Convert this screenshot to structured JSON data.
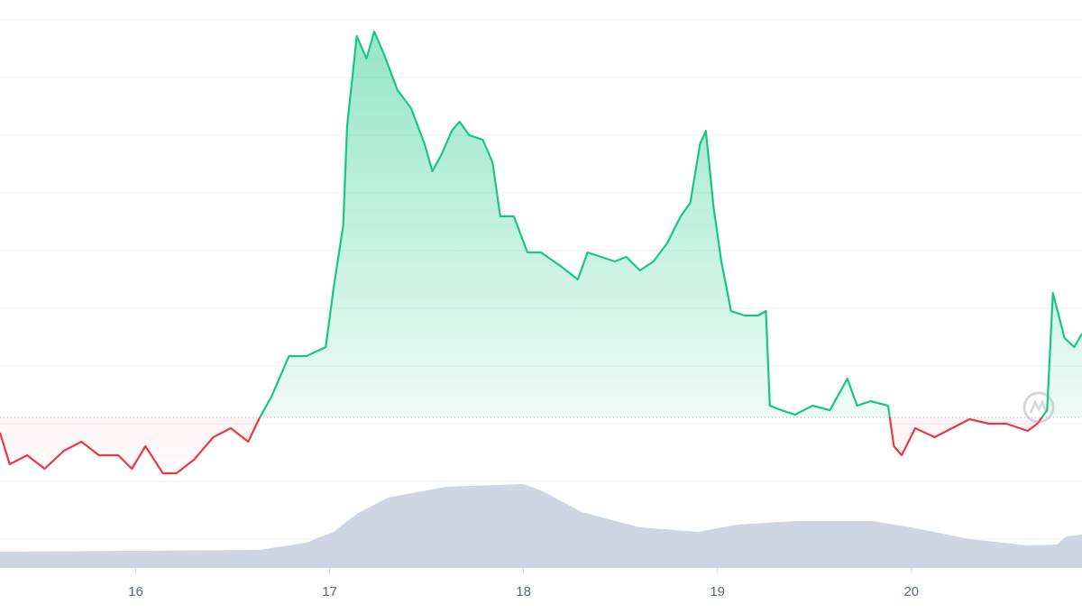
{
  "chart_data": {
    "type": "line",
    "xlim": [
      15.3,
      20.88
    ],
    "xticks": [
      16,
      17,
      18,
      19,
      20
    ],
    "ylim": [
      -32,
      598
    ],
    "yticks": [
      0,
      64,
      128,
      192,
      256,
      320,
      384,
      448,
      512,
      576
    ],
    "y2lim": [
      0,
      630
    ],
    "grid": true,
    "baseline": 135,
    "up_color": "#16c784",
    "down_color": "#ea3943",
    "price": {
      "x": [
        15.3,
        15.35,
        15.44,
        15.53,
        15.63,
        15.72,
        15.81,
        15.91,
        15.98,
        16.05,
        16.14,
        16.21,
        16.3,
        16.4,
        16.49,
        16.58,
        16.64,
        16.7,
        16.79,
        16.88,
        16.98,
        17.02,
        17.07,
        17.09,
        17.14,
        17.19,
        17.23,
        17.28,
        17.35,
        17.42,
        17.49,
        17.53,
        17.58,
        17.63,
        17.67,
        17.72,
        17.79,
        17.84,
        17.88,
        17.95,
        18.02,
        18.09,
        18.19,
        18.28,
        18.33,
        18.4,
        18.47,
        18.53,
        18.6,
        18.67,
        18.74,
        18.81,
        18.86,
        18.91,
        18.94,
        18.98,
        19.02,
        19.07,
        19.14,
        19.21,
        19.25,
        19.27,
        19.33,
        19.4,
        19.49,
        19.58,
        19.67,
        19.72,
        19.79,
        19.88,
        19.91,
        19.95,
        20.02,
        20.12,
        20.21,
        20.3,
        20.4,
        20.49,
        20.6,
        20.65,
        20.7,
        20.73,
        20.79,
        20.84,
        20.88
      ],
      "values": [
        118,
        83,
        93,
        78,
        98,
        108,
        93,
        93,
        78,
        103,
        73,
        73,
        88,
        113,
        123,
        108,
        135,
        158,
        203,
        203,
        213,
        278,
        348,
        458,
        558,
        533,
        563,
        538,
        498,
        478,
        438,
        408,
        428,
        453,
        463,
        448,
        443,
        418,
        358,
        358,
        318,
        318,
        303,
        288,
        318,
        313,
        308,
        313,
        298,
        308,
        328,
        358,
        373,
        438,
        453,
        368,
        308,
        253,
        248,
        248,
        253,
        148,
        143,
        138,
        148,
        143,
        178,
        148,
        153,
        148,
        103,
        93,
        123,
        113,
        123,
        133,
        128,
        128,
        120,
        128,
        143,
        273,
        223,
        213,
        228
      ]
    },
    "volume": {
      "axis": "y2",
      "color": "#cfd5e2",
      "x": [
        15.3,
        16.64,
        16.88,
        17.02,
        17.14,
        17.3,
        17.6,
        18.0,
        18.1,
        18.3,
        18.6,
        18.9,
        19.1,
        19.4,
        19.8,
        20.0,
        20.3,
        20.6,
        20.75,
        20.8,
        20.88
      ],
      "values": [
        18,
        20,
        28,
        40,
        60,
        78,
        90,
        93,
        85,
        62,
        45,
        40,
        48,
        52,
        52,
        45,
        32,
        25,
        26,
        35,
        37
      ]
    }
  }
}
